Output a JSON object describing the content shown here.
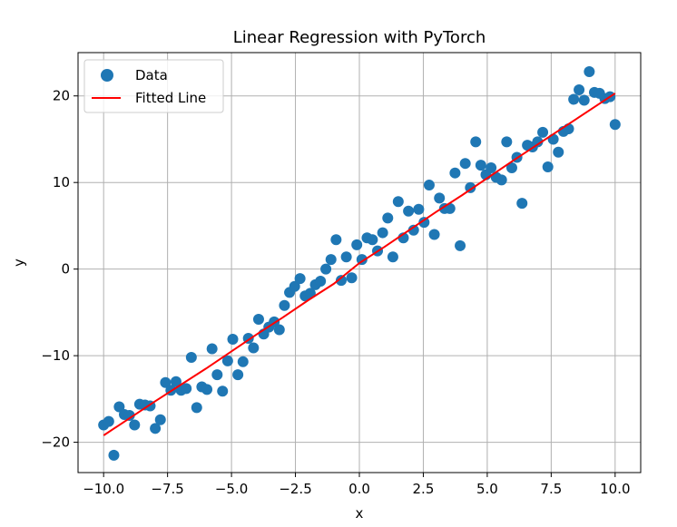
{
  "chart_data": {
    "type": "scatter",
    "title": "Linear Regression with PyTorch",
    "xlabel": "x",
    "ylabel": "y",
    "xlim": [
      -11.0,
      11.0
    ],
    "ylim": [
      -23.5,
      25.0
    ],
    "xticks": [
      -10.0,
      -7.5,
      -5.0,
      -2.5,
      0.0,
      2.5,
      5.0,
      7.5,
      10.0
    ],
    "xtick_labels": [
      "−10.0",
      "−7.5",
      "−5.0",
      "−2.5",
      "0.0",
      "2.5",
      "5.0",
      "7.5",
      "10.0"
    ],
    "yticks": [
      -20,
      -10,
      0,
      10,
      20
    ],
    "ytick_labels": [
      "−20",
      "−10",
      "0",
      "10",
      "20"
    ],
    "grid": true,
    "legend_position": "top-left",
    "series": [
      {
        "name": "Data",
        "kind": "scatter",
        "color": "#1f77b4",
        "x": [
          -10.0,
          -9.8,
          -9.6,
          -9.39,
          -9.19,
          -8.99,
          -8.79,
          -8.59,
          -8.38,
          -8.18,
          -7.98,
          -7.78,
          -7.58,
          -7.37,
          -7.17,
          -6.97,
          -6.77,
          -6.57,
          -6.36,
          -6.16,
          -5.96,
          -5.76,
          -5.56,
          -5.35,
          -5.15,
          -4.95,
          -4.75,
          -4.55,
          -4.34,
          -4.14,
          -3.94,
          -3.74,
          -3.54,
          -3.33,
          -3.13,
          -2.93,
          -2.73,
          -2.53,
          -2.32,
          -2.12,
          -1.92,
          -1.72,
          -1.52,
          -1.31,
          -1.11,
          -0.91,
          -0.71,
          -0.51,
          -0.3,
          -0.1,
          0.1,
          0.3,
          0.51,
          0.71,
          0.91,
          1.11,
          1.31,
          1.52,
          1.72,
          1.92,
          2.12,
          2.32,
          2.53,
          2.73,
          2.93,
          3.13,
          3.33,
          3.54,
          3.74,
          3.94,
          4.14,
          4.34,
          4.55,
          4.75,
          4.95,
          5.15,
          5.35,
          5.56,
          5.76,
          5.96,
          6.16,
          6.36,
          6.57,
          6.77,
          6.97,
          7.17,
          7.37,
          7.58,
          7.78,
          7.98,
          8.18,
          8.38,
          8.59,
          8.79,
          8.99,
          9.19,
          9.39,
          9.6,
          9.8,
          10.0
        ],
        "y": [
          -18.0,
          -17.6,
          -21.5,
          -15.9,
          -16.8,
          -16.9,
          -18.0,
          -15.6,
          -15.7,
          -15.8,
          -18.4,
          -17.4,
          -13.1,
          -14.0,
          -13.0,
          -14.0,
          -13.8,
          -10.2,
          -16.0,
          -13.6,
          -13.9,
          -9.2,
          -12.2,
          -14.1,
          -10.6,
          -8.1,
          -12.2,
          -10.7,
          -8.0,
          -9.1,
          -5.8,
          -7.5,
          -6.7,
          -6.1,
          -7.0,
          -4.2,
          -2.7,
          -2.0,
          -1.1,
          -3.1,
          -2.8,
          -1.8,
          -1.4,
          0.0,
          1.1,
          3.4,
          -1.3,
          1.4,
          -1.0,
          2.8,
          1.1,
          3.6,
          3.4,
          2.1,
          4.2,
          5.9,
          1.4,
          7.8,
          3.6,
          6.7,
          4.5,
          6.9,
          5.4,
          9.7,
          4.0,
          8.2,
          7.0,
          7.0,
          11.1,
          2.7,
          12.2,
          9.4,
          14.7,
          12.0,
          10.9,
          11.7,
          10.6,
          10.3,
          14.7,
          11.7,
          12.9,
          7.6,
          14.3,
          14.1,
          14.7,
          15.8,
          11.8,
          15.0,
          13.5,
          15.9,
          16.2,
          19.6,
          20.7,
          19.5,
          22.8,
          20.4,
          20.3,
          19.7,
          19.9,
          16.7
        ]
      },
      {
        "name": "Fitted Line",
        "kind": "line",
        "color": "#ff0000",
        "x": [
          -10.0,
          -8.0,
          -6.0,
          -4.0,
          -3.0,
          -2.0,
          -1.0,
          0.0,
          1.0,
          2.0,
          3.0,
          4.0,
          6.0,
          8.0,
          10.0
        ],
        "y": [
          -19.2,
          -15.3,
          -11.5,
          -7.5,
          -5.6,
          -3.6,
          -1.7,
          0.7,
          2.6,
          4.6,
          6.6,
          8.5,
          12.5,
          16.4,
          20.3
        ]
      }
    ]
  }
}
